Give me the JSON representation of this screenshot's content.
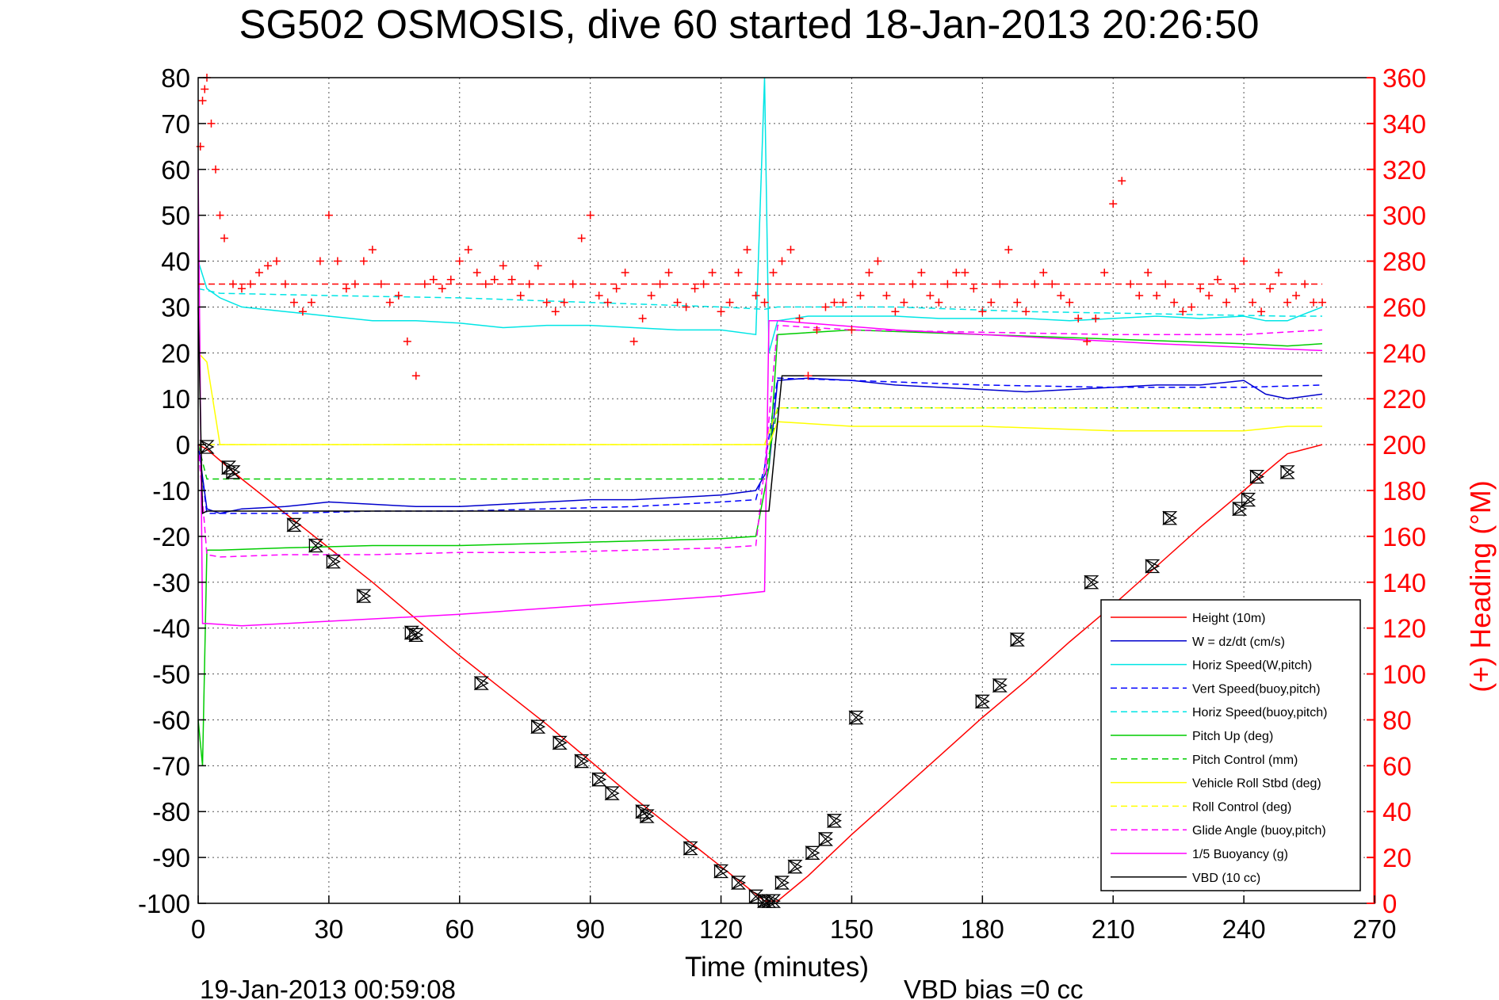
{
  "chart_data": {
    "type": "line",
    "title": "SG502 OSMOSIS, dive 60 started 18-Jan-2013 20:26:50",
    "xlabel": "Time (minutes)",
    "ylabel": "",
    "ylabel_right": "(+) Heading (°M)",
    "footer_left": "19-Jan-2013 00:59:08",
    "footer_right": "VBD bias =0 cc",
    "xlim": [
      0,
      270
    ],
    "ylim": [
      -100,
      80
    ],
    "ylim_right": [
      0,
      360
    ],
    "xticks": [
      "0",
      "30",
      "60",
      "90",
      "120",
      "150",
      "180",
      "210",
      "240",
      "270"
    ],
    "yticks": [
      "80",
      "70",
      "60",
      "50",
      "40",
      "30",
      "20",
      "10",
      "0",
      "-10",
      "-20",
      "-30",
      "-40",
      "-50",
      "-60",
      "-70",
      "-80",
      "-90",
      "-100"
    ],
    "yticks_right": [
      "360",
      "340",
      "320",
      "300",
      "280",
      "260",
      "240",
      "220",
      "200",
      "180",
      "160",
      "140",
      "120",
      "100",
      "80",
      "60",
      "40",
      "20",
      "0"
    ],
    "grid": true,
    "legend_position": "bottom-right",
    "colors": {
      "height": "#ff0000",
      "w": "#0000cc",
      "horiz": "#00e5e5",
      "vert_dash": "#0000ff",
      "pitch": "#00cc00",
      "roll": "#ffff00",
      "glide": "#ff00ff",
      "vbd": "#000000",
      "heading": "#ff0000"
    },
    "series": [
      {
        "name": "Height (10m)",
        "style": "solid",
        "color": "#ff0000",
        "x": [
          0,
          2,
          10,
          20,
          30,
          40,
          50,
          60,
          70,
          80,
          90,
          100,
          110,
          120,
          130,
          133,
          140,
          150,
          160,
          170,
          180,
          190,
          200,
          210,
          220,
          230,
          240,
          250,
          258
        ],
        "y": [
          0,
          -1,
          -7.5,
          -15,
          -22.5,
          -30,
          -38,
          -46,
          -53.5,
          -61,
          -69,
          -77,
          -84.5,
          -92,
          -99.5,
          -99.5,
          -94,
          -85,
          -76.5,
          -68,
          -59.5,
          -51.5,
          -43,
          -35,
          -26.5,
          -18,
          -10,
          -2,
          0
        ]
      },
      {
        "name": "W = dz/dt (cm/s)",
        "style": "solid",
        "color": "#0000cc",
        "x": [
          0,
          2,
          5,
          10,
          20,
          30,
          40,
          50,
          60,
          70,
          80,
          90,
          100,
          110,
          120,
          128,
          131,
          133,
          140,
          150,
          160,
          170,
          180,
          190,
          200,
          210,
          220,
          230,
          240,
          245,
          250,
          258
        ],
        "y": [
          0,
          -14,
          -15,
          -14,
          -13.5,
          -12.5,
          -13,
          -13.5,
          -13.5,
          -13,
          -12.5,
          -12,
          -12,
          -11.5,
          -11,
          -10,
          -5,
          14,
          14.5,
          14,
          13,
          12.5,
          12,
          11.5,
          12,
          12.5,
          13,
          13,
          14,
          11,
          10,
          11
        ]
      },
      {
        "name": "Horiz Speed(W,pitch)",
        "style": "solid",
        "color": "#00e5e5",
        "x": [
          0,
          2,
          5,
          10,
          20,
          30,
          40,
          50,
          60,
          70,
          80,
          90,
          100,
          110,
          120,
          128,
          130,
          131,
          133,
          140,
          150,
          160,
          170,
          180,
          190,
          200,
          210,
          220,
          230,
          240,
          245,
          250,
          258
        ],
        "y": [
          40,
          34,
          32,
          30,
          29,
          28,
          27,
          27,
          26.5,
          25.5,
          26,
          26,
          25.5,
          25,
          25,
          24,
          80,
          20,
          27,
          28,
          28,
          28,
          27.5,
          27.5,
          27.5,
          27,
          27.5,
          28,
          27.5,
          28,
          27,
          27,
          30
        ]
      },
      {
        "name": "Vert Speed(buoy,pitch)",
        "style": "dashed",
        "color": "#0000ff",
        "x": [
          0,
          2,
          5,
          20,
          40,
          60,
          80,
          100,
          120,
          128,
          130,
          133,
          150,
          180,
          210,
          240,
          258
        ],
        "y": [
          0,
          -15,
          -15,
          -15,
          -14.5,
          -14.5,
          -14,
          -13.5,
          -12.5,
          -12,
          -5,
          14.5,
          14,
          13,
          12.5,
          12.5,
          13
        ]
      },
      {
        "name": "Horiz Speed(buoy,pitch)",
        "style": "dashed",
        "color": "#00e5e5",
        "x": [
          0,
          5,
          30,
          60,
          90,
          120,
          130,
          133,
          160,
          190,
          220,
          250,
          258
        ],
        "y": [
          34,
          33,
          32.5,
          32,
          31,
          30,
          29.5,
          30,
          30,
          29,
          28.5,
          28,
          28
        ]
      },
      {
        "name": "Pitch Up (deg)",
        "style": "solid",
        "color": "#00cc00",
        "x": [
          0,
          1,
          2,
          5,
          20,
          40,
          60,
          80,
          100,
          120,
          128,
          131,
          133,
          150,
          180,
          210,
          240,
          250,
          258
        ],
        "y": [
          -60,
          -70,
          -23,
          -23,
          -22.5,
          -22,
          -22,
          -21.5,
          -21,
          -20.5,
          -20,
          -5,
          24,
          25,
          24,
          23,
          22,
          21.5,
          22
        ]
      },
      {
        "name": "Pitch Control (mm)",
        "style": "dashed",
        "color": "#00cc00",
        "x": [
          0,
          2,
          5,
          30,
          60,
          90,
          120,
          130,
          133,
          160,
          190,
          220,
          258
        ],
        "y": [
          0,
          -7.5,
          -7.5,
          -7.5,
          -7.5,
          -7.5,
          -7.5,
          -7.5,
          8,
          8,
          8,
          8,
          8
        ]
      },
      {
        "name": "Vehicle Roll Stbd (deg)",
        "style": "solid",
        "color": "#ffff00",
        "x": [
          0,
          2,
          5,
          20,
          40,
          60,
          80,
          100,
          120,
          128,
          131,
          133,
          150,
          180,
          210,
          240,
          250,
          258
        ],
        "y": [
          20,
          18,
          0,
          0,
          0,
          0,
          0,
          0,
          0,
          0,
          0,
          5,
          4,
          4,
          3,
          3,
          4,
          4
        ]
      },
      {
        "name": "Roll Control (deg)",
        "style": "dashed",
        "color": "#ffff00",
        "x": [
          0,
          2,
          40,
          80,
          120,
          130,
          133,
          180,
          220,
          258
        ],
        "y": [
          0,
          0,
          0,
          0,
          0,
          0,
          8,
          8,
          8,
          8
        ]
      },
      {
        "name": "Glide Angle (buoy,pitch)",
        "style": "dashed",
        "color": "#ff00ff",
        "x": [
          0,
          2,
          5,
          20,
          40,
          60,
          80,
          100,
          120,
          128,
          130,
          133,
          150,
          180,
          210,
          240,
          258
        ],
        "y": [
          0,
          -24,
          -24.5,
          -24,
          -24,
          -23.5,
          -23.5,
          -23,
          -22.5,
          -22,
          -5,
          26,
          25,
          24.5,
          24,
          24,
          25
        ]
      },
      {
        "name": "1/5 Buoyancy (g)",
        "style": "solid",
        "color": "#ff00ff",
        "x": [
          0,
          1,
          2,
          10,
          30,
          60,
          90,
          120,
          130,
          131,
          133,
          160,
          190,
          220,
          258
        ],
        "y": [
          60,
          -39,
          -39,
          -39.5,
          -38.5,
          -37,
          -35,
          -33,
          -32,
          27,
          27,
          25,
          23.5,
          22,
          20.5
        ]
      },
      {
        "name": "VBD (10 cc)",
        "style": "solid",
        "color": "#000000",
        "x": [
          0,
          1,
          2,
          10,
          40,
          80,
          120,
          130,
          131,
          134,
          160,
          190,
          220,
          258
        ],
        "y": [
          30,
          -15,
          -14.5,
          -14.5,
          -14.5,
          -14.5,
          -14.5,
          -14.5,
          -14.5,
          15,
          15,
          15,
          15,
          15
        ]
      }
    ],
    "heading": {
      "name": "(+) Heading",
      "axis": "right",
      "marker": "+",
      "color": "#ff0000",
      "reference_line": 270,
      "x": [
        0.5,
        1,
        1.5,
        2,
        3,
        4,
        5,
        6,
        8,
        10,
        12,
        14,
        16,
        18,
        20,
        22,
        24,
        26,
        28,
        30,
        32,
        34,
        36,
        38,
        40,
        42,
        44,
        46,
        48,
        50,
        52,
        54,
        56,
        58,
        60,
        62,
        64,
        66,
        68,
        70,
        72,
        74,
        76,
        78,
        80,
        82,
        84,
        86,
        88,
        90,
        92,
        94,
        96,
        98,
        100,
        102,
        104,
        106,
        108,
        110,
        112,
        114,
        116,
        118,
        120,
        122,
        124,
        126,
        128,
        130,
        132,
        134,
        136,
        138,
        140,
        142,
        144,
        146,
        148,
        150,
        152,
        154,
        156,
        158,
        160,
        162,
        164,
        166,
        168,
        170,
        172,
        174,
        176,
        178,
        180,
        182,
        184,
        186,
        188,
        190,
        192,
        194,
        196,
        198,
        200,
        202,
        204,
        206,
        208,
        210,
        212,
        214,
        216,
        218,
        220,
        222,
        224,
        226,
        228,
        230,
        232,
        234,
        236,
        238,
        240,
        242,
        244,
        246,
        248,
        250,
        252,
        254,
        256,
        258
      ],
      "y": [
        330,
        350,
        355,
        360,
        340,
        320,
        300,
        290,
        270,
        268,
        270,
        275,
        278,
        280,
        270,
        262,
        258,
        262,
        280,
        300,
        280,
        268,
        270,
        280,
        285,
        270,
        262,
        265,
        245,
        230,
        270,
        272,
        268,
        272,
        280,
        285,
        275,
        270,
        272,
        278,
        272,
        265,
        270,
        278,
        262,
        258,
        262,
        270,
        290,
        300,
        265,
        262,
        268,
        275,
        245,
        255,
        265,
        270,
        275,
        262,
        260,
        268,
        270,
        275,
        258,
        262,
        275,
        285,
        265,
        262,
        275,
        280,
        285,
        255,
        230,
        250,
        260,
        262,
        262,
        250,
        265,
        275,
        280,
        265,
        258,
        262,
        270,
        275,
        265,
        262,
        270,
        275,
        275,
        268,
        258,
        262,
        270,
        285,
        262,
        258,
        270,
        275,
        270,
        265,
        262,
        255,
        245,
        255,
        275,
        305,
        315,
        270,
        265,
        275,
        265,
        270,
        262,
        258,
        260,
        268,
        265,
        272,
        262,
        268,
        280,
        262,
        258,
        268,
        275,
        262,
        265,
        270,
        262,
        262
      ]
    },
    "glider_markers": {
      "name": "GC markers",
      "marker": "hourglass",
      "color": "#000000",
      "x": [
        2,
        7,
        8,
        22,
        27,
        31,
        38,
        49,
        50,
        65,
        78,
        83,
        88,
        92,
        95,
        102,
        103,
        113,
        120,
        124,
        128,
        130,
        131,
        132,
        134,
        137,
        141,
        144,
        146,
        151,
        180,
        184,
        188,
        205,
        219,
        223,
        239,
        241,
        243,
        250
      ],
      "y": [
        -0.5,
        -5,
        -6,
        -17.5,
        -22,
        -25.5,
        -33,
        -41,
        -41.5,
        -52,
        -61.5,
        -65,
        -69,
        -73,
        -76,
        -80,
        -81,
        -88,
        -93,
        -95.5,
        -98.5,
        -99.5,
        -99.5,
        -99.5,
        -95.5,
        -92,
        -89,
        -86,
        -82,
        -59.5,
        -56,
        -52.5,
        -42.5,
        -30,
        -26.5,
        -16,
        -14,
        -12,
        -7,
        -6
      ]
    }
  }
}
